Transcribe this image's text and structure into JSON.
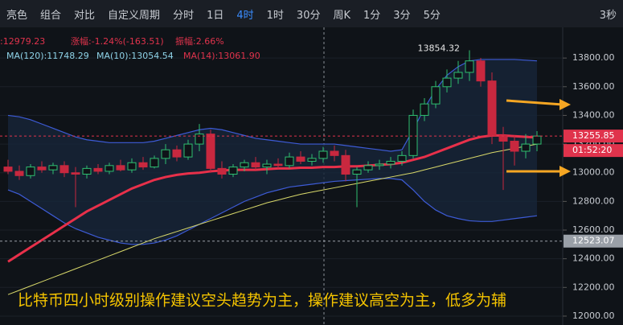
{
  "toolbar": {
    "items": [
      "亮色",
      "组合",
      "对比",
      "自定义周期",
      "分时",
      "1日",
      "4时",
      "1时",
      "30分",
      "周K",
      "1分",
      "3分",
      "5分",
      "3秒"
    ],
    "active": 6
  },
  "chart_data": {
    "type": "candlestick",
    "info": [
      ":12979.23",
      "涨幅:-1.24%(-163.51)",
      "振幅:2.66%",
      "MA(120):11748.29",
      "MA(10):13054.54",
      "MA(14):13061.90"
    ],
    "annotation": "比特币四小时级别操作建议空头趋势为主，操作建议高空为主，低多为辅",
    "countdown": "01:52:20",
    "up_color": "#2fbf71",
    "down_color": "#c8283f",
    "open": [
      13040,
      13010,
      12980,
      13040,
      13020,
      13050,
      13000,
      12990,
      13030,
      13010,
      13050,
      13020,
      13070,
      13040,
      13100,
      13160,
      13110,
      13200,
      13270,
      13030,
      12990,
      13040,
      13070,
      13040,
      13060,
      13050,
      13110,
      13080,
      13100,
      13150,
      13120,
      12990,
      13020,
      13050,
      13060,
      13080,
      13120,
      13400,
      13480,
      13600,
      13660,
      13700,
      13780,
      13640,
      13260,
      13220,
      13150,
      13200
    ],
    "high": [
      13090,
      13050,
      13060,
      13080,
      13070,
      13080,
      13040,
      13050,
      13060,
      13070,
      13090,
      13100,
      13110,
      13120,
      13200,
      13190,
      13230,
      13340,
      13300,
      13080,
      13060,
      13090,
      13110,
      13090,
      13100,
      13140,
      13150,
      13130,
      13180,
      13190,
      13160,
      13040,
      13080,
      13090,
      13110,
      13150,
      13440,
      13520,
      13640,
      13720,
      13780,
      13854.32,
      13800,
      13700,
      13320,
      13260,
      13270,
      13290
    ],
    "low": [
      12990,
      12950,
      12960,
      13000,
      12990,
      12970,
      12760,
      12960,
      12990,
      12990,
      13010,
      13000,
      13020,
      13030,
      13060,
      13080,
      13090,
      13150,
      13000,
      12960,
      12970,
      13010,
      13020,
      12990,
      13030,
      13030,
      13060,
      13050,
      13070,
      13080,
      12940,
      12760,
      13000,
      13020,
      13030,
      13050,
      13100,
      13360,
      13450,
      13560,
      13620,
      13640,
      13600,
      13200,
      12880,
      13050,
      13100,
      13150
    ],
    "close": [
      13010,
      12980,
      13040,
      13020,
      13050,
      13000,
      12990,
      13030,
      13010,
      13050,
      13020,
      13070,
      13040,
      13100,
      13160,
      13110,
      13200,
      13270,
      13030,
      12990,
      13040,
      13070,
      13040,
      13060,
      13050,
      13110,
      13080,
      13100,
      13150,
      13120,
      12990,
      13020,
      13050,
      13060,
      13080,
      13120,
      13400,
      13480,
      13600,
      13660,
      13700,
      13780,
      13640,
      13260,
      13220,
      13150,
      13200,
      13255.85
    ],
    "band": {
      "color": "#3d5bd6",
      "fill": "#17263a",
      "upper": [
        13400,
        13390,
        13370,
        13340,
        13310,
        13280,
        13250,
        13230,
        13220,
        13210,
        13210,
        13210,
        13210,
        13220,
        13240,
        13260,
        13280,
        13300,
        13310,
        13300,
        13280,
        13260,
        13240,
        13230,
        13220,
        13210,
        13200,
        13200,
        13200,
        13200,
        13190,
        13180,
        13170,
        13160,
        13150,
        13160,
        13300,
        13450,
        13580,
        13680,
        13740,
        13780,
        13790,
        13790,
        13790,
        13790,
        13785,
        13780
      ],
      "lower": [
        12880,
        12850,
        12800,
        12750,
        12700,
        12650,
        12610,
        12580,
        12550,
        12530,
        12510,
        12500,
        12500,
        12510,
        12530,
        12560,
        12600,
        12640,
        12680,
        12720,
        12760,
        12800,
        12830,
        12860,
        12880,
        12900,
        12910,
        12920,
        12930,
        12940,
        12945,
        12950,
        12955,
        12960,
        12960,
        12950,
        12880,
        12800,
        12740,
        12700,
        12680,
        12665,
        12660,
        12660,
        12670,
        12680,
        12690,
        12700
      ]
    },
    "lines": [
      {
        "color": "#d8d86a",
        "width": 1,
        "values": [
          12150,
          12180,
          12210,
          12240,
          12270,
          12300,
          12330,
          12360,
          12390,
          12420,
          12450,
          12480,
          12510,
          12540,
          12565,
          12590,
          12615,
          12640,
          12665,
          12690,
          12715,
          12740,
          12765,
          12790,
          12810,
          12830,
          12850,
          12865,
          12880,
          12895,
          12910,
          12925,
          12940,
          12955,
          12970,
          12985,
          13000,
          13020,
          13040,
          13060,
          13080,
          13100,
          13120,
          13140,
          13155,
          13170,
          13185,
          13200
        ]
      },
      {
        "color": "#e8304a",
        "width": 3,
        "values": [
          12380,
          12430,
          12480,
          12530,
          12580,
          12630,
          12680,
          12730,
          12770,
          12810,
          12850,
          12890,
          12920,
          12950,
          12970,
          12985,
          12995,
          13000,
          13010,
          13015,
          13020,
          13020,
          13020,
          13025,
          13030,
          13030,
          13035,
          13035,
          13040,
          13040,
          13045,
          13045,
          13050,
          13055,
          13060,
          13070,
          13090,
          13110,
          13140,
          13170,
          13200,
          13230,
          13250,
          13260,
          13260,
          13255,
          13250,
          13245
        ]
      }
    ],
    "price_lines": [
      {
        "value": 13255.85,
        "color": "#e0334c"
      },
      {
        "value": 12523.07,
        "color": "#9aa0a8"
      }
    ],
    "ylim": [
      11938,
      14014
    ],
    "yticks": [
      {
        "value": 12000,
        "label": "12000.00"
      },
      {
        "value": 12200,
        "label": "12200.00"
      },
      {
        "value": 12400,
        "label": "12400.00"
      },
      {
        "value": 12600,
        "label": "12600.00"
      },
      {
        "value": 12800,
        "label": "12800.00"
      },
      {
        "value": 13000,
        "label": "13000.00"
      },
      {
        "value": 13200,
        "label": "13200.00"
      },
      {
        "value": 13400,
        "label": "13400.00"
      },
      {
        "value": 13600,
        "label": "13600.00"
      },
      {
        "value": 13800,
        "label": "13800.00"
      }
    ]
  }
}
